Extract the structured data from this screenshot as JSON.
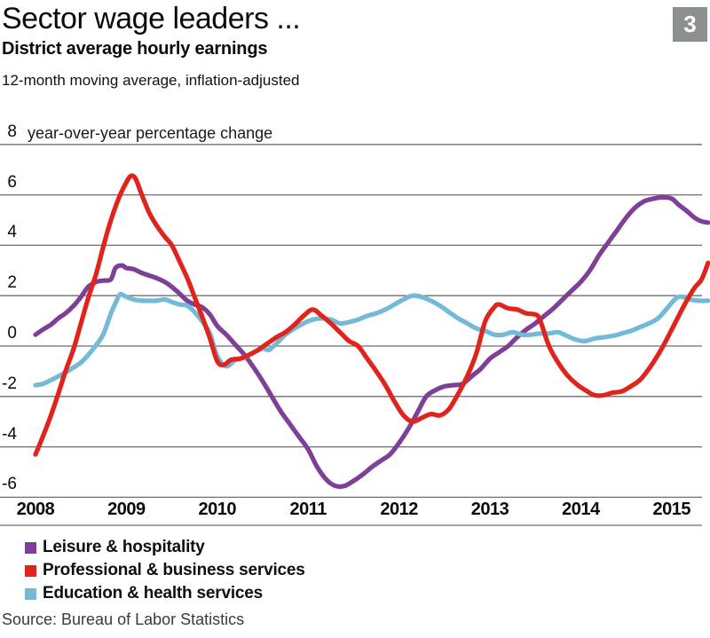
{
  "header": {
    "title": "Sector wage leaders ...",
    "badge": "3",
    "subtitle": "District average hourly earnings",
    "note": "12-month moving average, inflation-adjusted"
  },
  "footer": {
    "source": "Source: Bureau of Labor Statistics"
  },
  "colors": {
    "gridline": "#6e6e6e",
    "badge_bg": "#8c9091",
    "purple": "#7f3f97",
    "red": "#e1231d",
    "blue": "#74b9d6"
  },
  "chart_data": {
    "type": "line",
    "title": "District average hourly earnings",
    "subtitle": "12-month moving average, inflation-adjusted",
    "y_axis_label": "year-over-year percentage change",
    "x_ticks": [
      "2008",
      "2009",
      "2010",
      "2011",
      "2012",
      "2013",
      "2014",
      "2015"
    ],
    "y_ticks": [
      "8",
      "6",
      "4",
      "2",
      "0",
      "-2",
      "-4",
      "-6"
    ],
    "y_tick_values": [
      8,
      6,
      4,
      2,
      0,
      -2,
      -4,
      -6
    ],
    "xlim": [
      2008,
      2015.4
    ],
    "ylim": [
      -6,
      8
    ],
    "grid": true,
    "legend_position": "bottom-left",
    "units": "percent",
    "series": [
      {
        "name": "Leisure & hospitality",
        "color": "#7f3f97",
        "points": [
          [
            2008.0,
            0.45
          ],
          [
            2008.08,
            0.65
          ],
          [
            2008.17,
            0.85
          ],
          [
            2008.25,
            1.1
          ],
          [
            2008.33,
            1.3
          ],
          [
            2008.42,
            1.6
          ],
          [
            2008.5,
            1.95
          ],
          [
            2008.58,
            2.35
          ],
          [
            2008.67,
            2.55
          ],
          [
            2008.75,
            2.6
          ],
          [
            2008.83,
            2.65
          ],
          [
            2008.88,
            3.1
          ],
          [
            2008.95,
            3.2
          ],
          [
            2009.0,
            3.1
          ],
          [
            2009.08,
            3.05
          ],
          [
            2009.17,
            2.9
          ],
          [
            2009.25,
            2.8
          ],
          [
            2009.33,
            2.7
          ],
          [
            2009.42,
            2.55
          ],
          [
            2009.5,
            2.35
          ],
          [
            2009.58,
            2.1
          ],
          [
            2009.67,
            1.8
          ],
          [
            2009.75,
            1.65
          ],
          [
            2009.83,
            1.55
          ],
          [
            2009.92,
            1.25
          ],
          [
            2010.0,
            0.8
          ],
          [
            2010.1,
            0.45
          ],
          [
            2010.2,
            0.05
          ],
          [
            2010.3,
            -0.35
          ],
          [
            2010.4,
            -0.85
          ],
          [
            2010.5,
            -1.4
          ],
          [
            2010.6,
            -2.0
          ],
          [
            2010.7,
            -2.6
          ],
          [
            2010.8,
            -3.1
          ],
          [
            2010.9,
            -3.6
          ],
          [
            2011.0,
            -4.1
          ],
          [
            2011.1,
            -4.8
          ],
          [
            2011.2,
            -5.3
          ],
          [
            2011.3,
            -5.55
          ],
          [
            2011.4,
            -5.55
          ],
          [
            2011.5,
            -5.35
          ],
          [
            2011.6,
            -5.1
          ],
          [
            2011.7,
            -4.8
          ],
          [
            2011.8,
            -4.55
          ],
          [
            2011.9,
            -4.3
          ],
          [
            2012.0,
            -3.85
          ],
          [
            2012.1,
            -3.3
          ],
          [
            2012.2,
            -2.65
          ],
          [
            2012.3,
            -2.0
          ],
          [
            2012.4,
            -1.75
          ],
          [
            2012.5,
            -1.6
          ],
          [
            2012.6,
            -1.55
          ],
          [
            2012.7,
            -1.5
          ],
          [
            2012.8,
            -1.2
          ],
          [
            2012.9,
            -0.9
          ],
          [
            2013.0,
            -0.5
          ],
          [
            2013.1,
            -0.25
          ],
          [
            2013.2,
            0.0
          ],
          [
            2013.3,
            0.35
          ],
          [
            2013.4,
            0.65
          ],
          [
            2013.5,
            0.9
          ],
          [
            2013.6,
            1.2
          ],
          [
            2013.7,
            1.5
          ],
          [
            2013.8,
            1.85
          ],
          [
            2013.9,
            2.2
          ],
          [
            2014.0,
            2.55
          ],
          [
            2014.1,
            3.0
          ],
          [
            2014.2,
            3.6
          ],
          [
            2014.3,
            4.1
          ],
          [
            2014.4,
            4.6
          ],
          [
            2014.5,
            5.1
          ],
          [
            2014.6,
            5.5
          ],
          [
            2014.7,
            5.75
          ],
          [
            2014.8,
            5.85
          ],
          [
            2014.9,
            5.9
          ],
          [
            2015.0,
            5.85
          ],
          [
            2015.08,
            5.6
          ],
          [
            2015.17,
            5.35
          ],
          [
            2015.25,
            5.1
          ],
          [
            2015.33,
            4.95
          ],
          [
            2015.4,
            4.9
          ]
        ]
      },
      {
        "name": "Professional & business services",
        "color": "#e1231d",
        "points": [
          [
            2008.0,
            -4.3
          ],
          [
            2008.08,
            -3.6
          ],
          [
            2008.17,
            -2.75
          ],
          [
            2008.25,
            -1.9
          ],
          [
            2008.33,
            -1.0
          ],
          [
            2008.42,
            -0.1
          ],
          [
            2008.5,
            0.9
          ],
          [
            2008.58,
            1.9
          ],
          [
            2008.67,
            2.9
          ],
          [
            2008.75,
            4.0
          ],
          [
            2008.83,
            5.0
          ],
          [
            2008.92,
            5.9
          ],
          [
            2009.0,
            6.5
          ],
          [
            2009.05,
            6.75
          ],
          [
            2009.1,
            6.65
          ],
          [
            2009.17,
            6.0
          ],
          [
            2009.25,
            5.3
          ],
          [
            2009.33,
            4.8
          ],
          [
            2009.42,
            4.35
          ],
          [
            2009.5,
            4.0
          ],
          [
            2009.58,
            3.4
          ],
          [
            2009.67,
            2.7
          ],
          [
            2009.75,
            1.95
          ],
          [
            2009.83,
            1.2
          ],
          [
            2009.92,
            0.3
          ],
          [
            2010.0,
            -0.6
          ],
          [
            2010.07,
            -0.75
          ],
          [
            2010.15,
            -0.55
          ],
          [
            2010.25,
            -0.5
          ],
          [
            2010.35,
            -0.35
          ],
          [
            2010.45,
            -0.15
          ],
          [
            2010.55,
            0.1
          ],
          [
            2010.65,
            0.35
          ],
          [
            2010.75,
            0.55
          ],
          [
            2010.85,
            0.85
          ],
          [
            2010.95,
            1.2
          ],
          [
            2011.05,
            1.45
          ],
          [
            2011.15,
            1.2
          ],
          [
            2011.25,
            0.9
          ],
          [
            2011.35,
            0.55
          ],
          [
            2011.45,
            0.2
          ],
          [
            2011.55,
            0.0
          ],
          [
            2011.65,
            -0.5
          ],
          [
            2011.75,
            -1.0
          ],
          [
            2011.85,
            -1.55
          ],
          [
            2011.95,
            -2.2
          ],
          [
            2012.05,
            -2.75
          ],
          [
            2012.15,
            -3.0
          ],
          [
            2012.25,
            -2.85
          ],
          [
            2012.35,
            -2.7
          ],
          [
            2012.45,
            -2.75
          ],
          [
            2012.55,
            -2.5
          ],
          [
            2012.65,
            -1.9
          ],
          [
            2012.75,
            -1.2
          ],
          [
            2012.85,
            -0.3
          ],
          [
            2012.95,
            1.0
          ],
          [
            2013.05,
            1.55
          ],
          [
            2013.1,
            1.65
          ],
          [
            2013.2,
            1.5
          ],
          [
            2013.3,
            1.45
          ],
          [
            2013.4,
            1.3
          ],
          [
            2013.5,
            1.25
          ],
          [
            2013.55,
            1.05
          ],
          [
            2013.65,
            0.0
          ],
          [
            2013.75,
            -0.65
          ],
          [
            2013.85,
            -1.15
          ],
          [
            2013.95,
            -1.5
          ],
          [
            2014.05,
            -1.75
          ],
          [
            2014.15,
            -1.95
          ],
          [
            2014.25,
            -1.95
          ],
          [
            2014.35,
            -1.85
          ],
          [
            2014.45,
            -1.8
          ],
          [
            2014.55,
            -1.6
          ],
          [
            2014.65,
            -1.35
          ],
          [
            2014.75,
            -0.9
          ],
          [
            2014.85,
            -0.35
          ],
          [
            2014.95,
            0.3
          ],
          [
            2015.05,
            1.0
          ],
          [
            2015.15,
            1.7
          ],
          [
            2015.25,
            2.3
          ],
          [
            2015.33,
            2.65
          ],
          [
            2015.4,
            3.3
          ]
        ]
      },
      {
        "name": "Education & health services",
        "color": "#74b9d6",
        "points": [
          [
            2008.0,
            -1.55
          ],
          [
            2008.08,
            -1.5
          ],
          [
            2008.17,
            -1.35
          ],
          [
            2008.25,
            -1.2
          ],
          [
            2008.33,
            -1.05
          ],
          [
            2008.42,
            -0.85
          ],
          [
            2008.5,
            -0.65
          ],
          [
            2008.58,
            -0.35
          ],
          [
            2008.67,
            0.05
          ],
          [
            2008.75,
            0.5
          ],
          [
            2008.83,
            1.3
          ],
          [
            2008.88,
            1.7
          ],
          [
            2008.93,
            2.05
          ],
          [
            2009.0,
            1.95
          ],
          [
            2009.08,
            1.85
          ],
          [
            2009.17,
            1.8
          ],
          [
            2009.25,
            1.8
          ],
          [
            2009.33,
            1.8
          ],
          [
            2009.42,
            1.85
          ],
          [
            2009.5,
            1.75
          ],
          [
            2009.58,
            1.65
          ],
          [
            2009.67,
            1.6
          ],
          [
            2009.75,
            1.35
          ],
          [
            2009.83,
            1.0
          ],
          [
            2009.92,
            0.5
          ],
          [
            2010.0,
            -0.4
          ],
          [
            2010.1,
            -0.8
          ],
          [
            2010.2,
            -0.55
          ],
          [
            2010.3,
            -0.45
          ],
          [
            2010.4,
            -0.25
          ],
          [
            2010.5,
            -0.1
          ],
          [
            2010.57,
            -0.15
          ],
          [
            2010.65,
            0.1
          ],
          [
            2010.75,
            0.45
          ],
          [
            2010.85,
            0.7
          ],
          [
            2010.95,
            0.9
          ],
          [
            2011.05,
            1.05
          ],
          [
            2011.15,
            1.1
          ],
          [
            2011.25,
            1.05
          ],
          [
            2011.35,
            0.9
          ],
          [
            2011.45,
            0.95
          ],
          [
            2011.55,
            1.05
          ],
          [
            2011.65,
            1.2
          ],
          [
            2011.75,
            1.3
          ],
          [
            2011.85,
            1.45
          ],
          [
            2011.95,
            1.65
          ],
          [
            2012.05,
            1.85
          ],
          [
            2012.15,
            2.0
          ],
          [
            2012.25,
            1.95
          ],
          [
            2012.35,
            1.8
          ],
          [
            2012.45,
            1.6
          ],
          [
            2012.55,
            1.35
          ],
          [
            2012.65,
            1.1
          ],
          [
            2012.75,
            0.9
          ],
          [
            2012.85,
            0.7
          ],
          [
            2012.95,
            0.6
          ],
          [
            2013.05,
            0.45
          ],
          [
            2013.15,
            0.45
          ],
          [
            2013.25,
            0.55
          ],
          [
            2013.35,
            0.45
          ],
          [
            2013.45,
            0.45
          ],
          [
            2013.55,
            0.5
          ],
          [
            2013.65,
            0.5
          ],
          [
            2013.75,
            0.55
          ],
          [
            2013.85,
            0.4
          ],
          [
            2013.95,
            0.25
          ],
          [
            2014.05,
            0.2
          ],
          [
            2014.15,
            0.3
          ],
          [
            2014.25,
            0.35
          ],
          [
            2014.35,
            0.4
          ],
          [
            2014.45,
            0.5
          ],
          [
            2014.55,
            0.6
          ],
          [
            2014.65,
            0.75
          ],
          [
            2014.75,
            0.9
          ],
          [
            2014.85,
            1.1
          ],
          [
            2014.95,
            1.5
          ],
          [
            2015.05,
            1.9
          ],
          [
            2015.12,
            1.95
          ],
          [
            2015.2,
            1.85
          ],
          [
            2015.3,
            1.8
          ],
          [
            2015.4,
            1.8
          ]
        ]
      }
    ]
  }
}
